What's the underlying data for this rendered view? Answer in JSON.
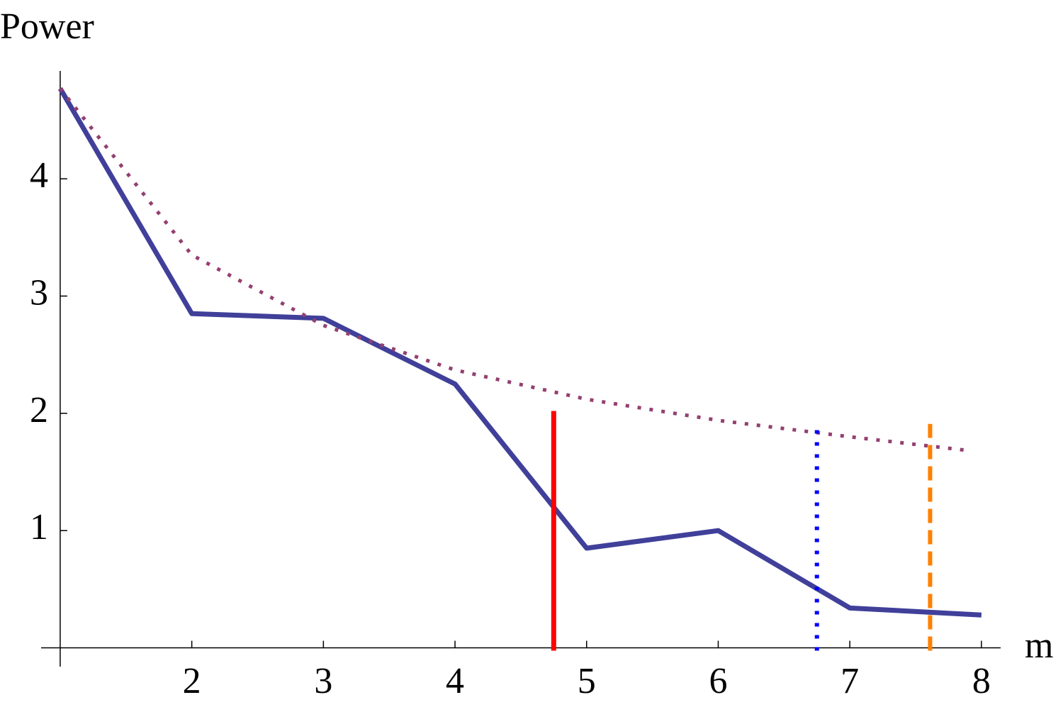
{
  "chart_data": {
    "type": "line",
    "y_label": "Power",
    "x_label": "m",
    "xlim": [
      0.855,
      8.146
    ],
    "ylim": [
      -0.16,
      4.92
    ],
    "xticks": [
      2,
      3,
      4,
      5,
      6,
      7,
      8
    ],
    "yticks": [
      1,
      2,
      3,
      4
    ],
    "axis_origin": {
      "x": 1,
      "y": 0
    },
    "series": [
      {
        "color": "#40409a",
        "style": "solid",
        "x": [
          1,
          2,
          3,
          4,
          5,
          6,
          7,
          8
        ],
        "values": [
          4.77,
          2.85,
          2.81,
          2.25,
          0.85,
          1.0,
          0.34,
          0.28
        ]
      },
      {
        "color": "#944070",
        "style": "dotted",
        "x": [
          1,
          2,
          3,
          4,
          5,
          6,
          7,
          7.92
        ],
        "values": [
          4.77,
          3.35,
          2.75,
          2.37,
          2.12,
          1.94,
          1.8,
          1.68
        ]
      }
    ],
    "vlines": [
      {
        "x": 4.75,
        "ymax": 2.02,
        "color": "#ff0000",
        "style": "solid"
      },
      {
        "x": 6.75,
        "ymax": 1.91,
        "color": "#0000ff",
        "style": "dotted"
      },
      {
        "x": 7.61,
        "ymax": 1.91,
        "color": "#ff8000",
        "style": "dashed"
      }
    ]
  }
}
